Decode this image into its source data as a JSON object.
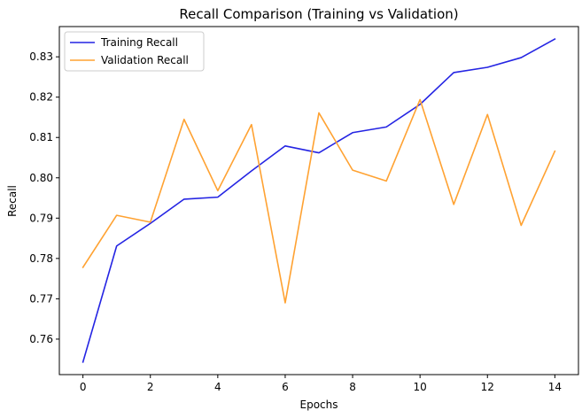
{
  "chart_data": {
    "type": "line",
    "title": "Recall Comparison (Training vs Validation)",
    "xlabel": "Epochs",
    "ylabel": "Recall",
    "x": [
      0,
      1,
      2,
      3,
      4,
      5,
      6,
      7,
      8,
      9,
      10,
      11,
      12,
      13,
      14
    ],
    "xlim": [
      -0.7,
      14.7
    ],
    "ylim": [
      0.7512,
      0.8375
    ],
    "xticks": [
      0,
      2,
      4,
      6,
      8,
      10,
      12,
      14
    ],
    "xtick_labels": [
      "0",
      "2",
      "4",
      "6",
      "8",
      "10",
      "12",
      "14"
    ],
    "yticks": [
      0.76,
      0.77,
      0.78,
      0.79,
      0.8,
      0.81,
      0.82,
      0.83
    ],
    "ytick_labels": [
      "0.76",
      "0.77",
      "0.78",
      "0.79",
      "0.80",
      "0.81",
      "0.82",
      "0.83"
    ],
    "grid": false,
    "legend_position": "upper left",
    "series": [
      {
        "name": "Training Recall",
        "color": "#2424e3",
        "values": [
          0.7543,
          0.7831,
          0.7887,
          0.7947,
          0.7952,
          0.8017,
          0.8079,
          0.8062,
          0.8112,
          0.8126,
          0.8182,
          0.8261,
          0.8274,
          0.8298,
          0.8344
        ]
      },
      {
        "name": "Validation Recall",
        "color": "#ffa232",
        "values": [
          0.7778,
          0.7907,
          0.789,
          0.8145,
          0.7968,
          0.8132,
          0.769,
          0.8161,
          0.8019,
          0.7992,
          0.8194,
          0.7934,
          0.8157,
          0.7882,
          0.8066
        ]
      }
    ]
  }
}
